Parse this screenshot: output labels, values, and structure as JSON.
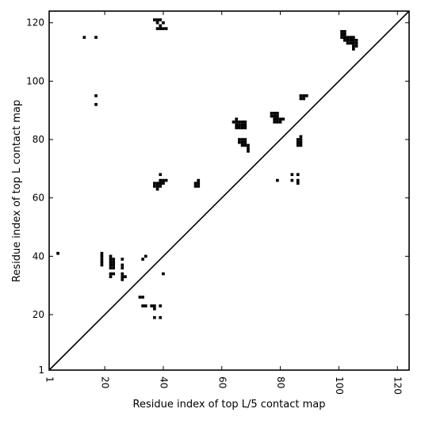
{
  "chart_data": {
    "type": "heatmap",
    "xlabel": "Residue index of top L/5 contact map",
    "ylabel": "Residue index of top L contact map",
    "xlim": [
      1,
      124
    ],
    "ylim": [
      1,
      124
    ],
    "x_ticks": [
      "1",
      "20",
      "40",
      "60",
      "80",
      "100",
      "120"
    ],
    "x_tick_values": [
      1,
      20,
      40,
      60,
      80,
      100,
      120
    ],
    "y_ticks": [
      "1",
      "20",
      "40",
      "60",
      "80",
      "100",
      "120"
    ],
    "y_tick_values": [
      1,
      20,
      40,
      60,
      80,
      100,
      120
    ],
    "x_tick_rotation": -90,
    "diagonal_line": {
      "from": [
        1,
        1
      ],
      "to": [
        124,
        124
      ]
    },
    "grid": false,
    "legend": "none",
    "colors": {
      "contact": "#000000",
      "background": "#ffffff"
    },
    "contacts": [
      [
        37,
        121
      ],
      [
        38,
        121
      ],
      [
        39,
        121
      ],
      [
        38,
        120
      ],
      [
        40,
        120
      ],
      [
        39,
        119
      ],
      [
        38,
        118
      ],
      [
        39,
        118
      ],
      [
        40,
        118
      ],
      [
        41,
        118
      ],
      [
        13,
        115
      ],
      [
        17,
        115
      ],
      [
        101,
        117
      ],
      [
        102,
        117
      ],
      [
        101,
        116
      ],
      [
        102,
        116
      ],
      [
        101,
        115
      ],
      [
        102,
        115
      ],
      [
        103,
        115
      ],
      [
        104,
        115
      ],
      [
        105,
        115
      ],
      [
        102,
        114
      ],
      [
        103,
        114
      ],
      [
        104,
        114
      ],
      [
        105,
        114
      ],
      [
        106,
        114
      ],
      [
        103,
        113
      ],
      [
        104,
        113
      ],
      [
        105,
        113
      ],
      [
        106,
        113
      ],
      [
        105,
        112
      ],
      [
        106,
        112
      ],
      [
        105,
        111
      ],
      [
        17,
        95
      ],
      [
        17,
        92
      ],
      [
        87,
        95
      ],
      [
        88,
        95
      ],
      [
        89,
        95
      ],
      [
        87,
        94
      ],
      [
        88,
        94
      ],
      [
        77,
        89
      ],
      [
        78,
        89
      ],
      [
        79,
        89
      ],
      [
        77,
        88
      ],
      [
        78,
        88
      ],
      [
        79,
        88
      ],
      [
        78,
        87
      ],
      [
        79,
        87
      ],
      [
        80,
        87
      ],
      [
        81,
        87
      ],
      [
        78,
        86
      ],
      [
        79,
        86
      ],
      [
        80,
        86
      ],
      [
        65,
        87
      ],
      [
        64,
        86
      ],
      [
        65,
        86
      ],
      [
        66,
        86
      ],
      [
        67,
        86
      ],
      [
        68,
        86
      ],
      [
        65,
        85
      ],
      [
        66,
        85
      ],
      [
        67,
        85
      ],
      [
        68,
        85
      ],
      [
        65,
        84
      ],
      [
        66,
        84
      ],
      [
        67,
        84
      ],
      [
        68,
        84
      ],
      [
        66,
        80
      ],
      [
        67,
        80
      ],
      [
        68,
        80
      ],
      [
        66,
        79
      ],
      [
        67,
        79
      ],
      [
        68,
        79
      ],
      [
        67,
        78
      ],
      [
        68,
        78
      ],
      [
        69,
        78
      ],
      [
        69,
        77
      ],
      [
        69,
        76
      ],
      [
        87,
        81
      ],
      [
        86,
        80
      ],
      [
        87,
        80
      ],
      [
        86,
        79
      ],
      [
        87,
        79
      ],
      [
        86,
        78
      ],
      [
        87,
        78
      ],
      [
        39,
        68
      ],
      [
        39,
        66
      ],
      [
        40,
        66
      ],
      [
        41,
        66
      ],
      [
        37,
        65
      ],
      [
        38,
        65
      ],
      [
        39,
        65
      ],
      [
        40,
        65
      ],
      [
        37,
        64
      ],
      [
        38,
        64
      ],
      [
        39,
        64
      ],
      [
        38,
        63
      ],
      [
        52,
        66
      ],
      [
        51,
        65
      ],
      [
        52,
        65
      ],
      [
        51,
        64
      ],
      [
        52,
        64
      ],
      [
        79,
        66
      ],
      [
        84,
        68
      ],
      [
        86,
        68
      ],
      [
        84,
        66
      ],
      [
        86,
        66
      ],
      [
        86,
        65
      ],
      [
        4,
        41
      ],
      [
        19,
        41
      ],
      [
        19,
        40
      ],
      [
        19,
        39
      ],
      [
        19,
        38
      ],
      [
        19,
        37
      ],
      [
        22,
        40
      ],
      [
        22,
        39
      ],
      [
        23,
        39
      ],
      [
        22,
        38
      ],
      [
        23,
        38
      ],
      [
        22,
        37
      ],
      [
        23,
        37
      ],
      [
        22,
        36
      ],
      [
        23,
        36
      ],
      [
        22,
        34
      ],
      [
        23,
        34
      ],
      [
        22,
        33
      ],
      [
        26,
        39
      ],
      [
        26,
        37
      ],
      [
        26,
        36
      ],
      [
        26,
        34
      ],
      [
        26,
        33
      ],
      [
        27,
        33
      ],
      [
        26,
        32
      ],
      [
        34,
        40
      ],
      [
        33,
        39
      ],
      [
        40,
        34
      ],
      [
        32,
        26
      ],
      [
        33,
        26
      ],
      [
        33,
        23
      ],
      [
        34,
        23
      ],
      [
        36,
        23
      ],
      [
        37,
        23
      ],
      [
        39,
        23
      ],
      [
        37,
        22
      ],
      [
        37,
        19
      ],
      [
        39,
        19
      ]
    ]
  }
}
